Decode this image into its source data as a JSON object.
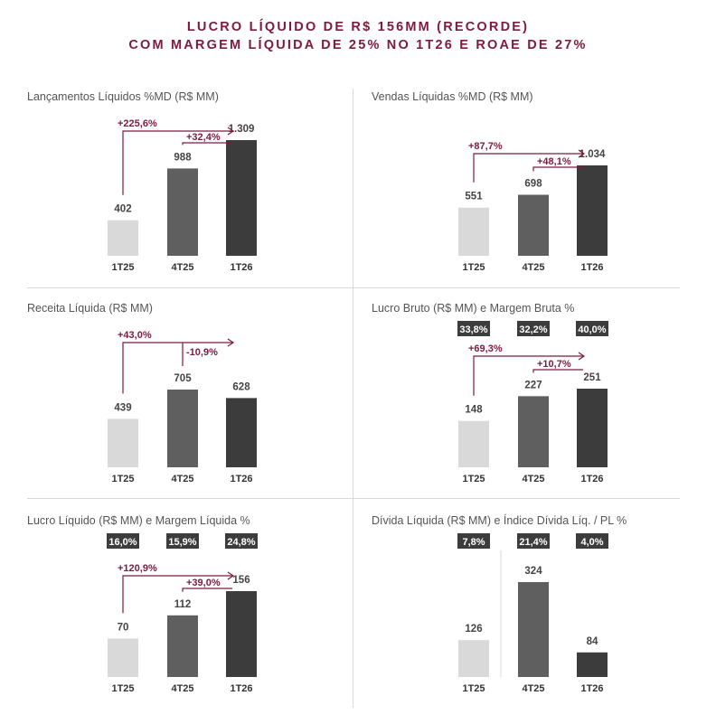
{
  "header": {
    "line1": "LUCRO LÍQUIDO DE R$ 156MM (RECORDE)",
    "line2": "COM MARGEM LÍQUIDA DE 25% NO 1T26 E ROAE DE 27%"
  },
  "colors": {
    "accent": "#7d1a3f",
    "bars": [
      "#d9d9d9",
      "#5f5f5f",
      "#3c3c3c"
    ],
    "badge_bg": "#3c3c3c"
  },
  "chart_data": [
    {
      "type": "bar",
      "title": "Lançamentos Líquidos %MD (R$ MM)",
      "categories": [
        "1T25",
        "4T25",
        "1T26"
      ],
      "values": [
        402,
        988,
        1309
      ],
      "value_labels": [
        "402",
        "988",
        "1.309"
      ],
      "badges": [],
      "growth": {
        "yoy": "+225,6%",
        "qoq": "+32,4%"
      }
    },
    {
      "type": "bar",
      "title": "Vendas Líquidas %MD (R$ MM)",
      "categories": [
        "1T25",
        "4T25",
        "1T26"
      ],
      "values": [
        551,
        698,
        1034
      ],
      "value_labels": [
        "551",
        "698",
        "1.034"
      ],
      "badges": [],
      "growth": {
        "yoy": "+87,7%",
        "qoq": "+48,1%"
      }
    },
    {
      "type": "bar",
      "title": "Receita Líquida (R$ MM)",
      "categories": [
        "1T25",
        "4T25",
        "1T26"
      ],
      "values": [
        439,
        705,
        628
      ],
      "value_labels": [
        "439",
        "705",
        "628"
      ],
      "badges": [],
      "growth": {
        "yoy": "+43,0%",
        "qoq": "-10,9%"
      }
    },
    {
      "type": "bar",
      "title": "Lucro Bruto (R$ MM) e Margem Bruta %",
      "categories": [
        "1T25",
        "4T25",
        "1T26"
      ],
      "values": [
        148,
        227,
        251
      ],
      "value_labels": [
        "148",
        "227",
        "251"
      ],
      "badges": [
        "33,8%",
        "32,2%",
        "40,0%"
      ],
      "growth": {
        "yoy": "+69,3%",
        "qoq": "+10,7%"
      }
    },
    {
      "type": "bar",
      "title": "Lucro Líquido (R$ MM) e Margem Líquida %",
      "categories": [
        "1T25",
        "4T25",
        "1T26"
      ],
      "values": [
        70,
        112,
        156
      ],
      "value_labels": [
        "70",
        "112",
        "156"
      ],
      "badges": [
        "16,0%",
        "15,9%",
        "24,8%"
      ],
      "growth": {
        "yoy": "+120,9%",
        "qoq": "+39,0%"
      }
    },
    {
      "type": "bar",
      "title": "Dívida Líquida (R$ MM) e Índice Dívida Líq. / PL %",
      "categories": [
        "1T25",
        "4T25",
        "1T26"
      ],
      "values": [
        126,
        324,
        84
      ],
      "value_labels": [
        "126",
        "324",
        "84"
      ],
      "badges": [
        "7,8%",
        "21,4%",
        "4,0%"
      ],
      "growth": null
    }
  ]
}
